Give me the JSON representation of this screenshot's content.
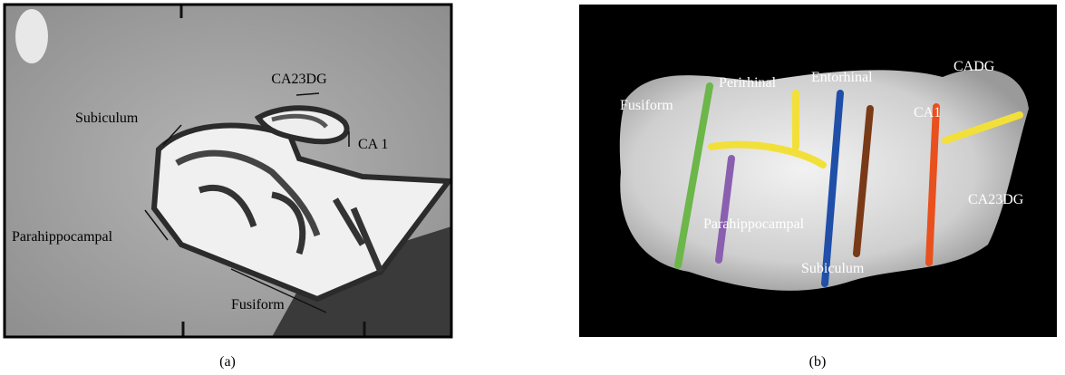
{
  "panel_a": {
    "caption": "(a)",
    "labels": [
      "CA23DG",
      "Subiculum",
      "CA 1",
      "Parahippocampal",
      "Fusiform"
    ]
  },
  "panel_b": {
    "caption": "(b)",
    "labels": [
      "Fusiform",
      "Perirhinal",
      "Entorhinal",
      "CADG",
      "CA1",
      "Parahippocampal",
      "CA23DG",
      "Subiculum"
    ]
  }
}
